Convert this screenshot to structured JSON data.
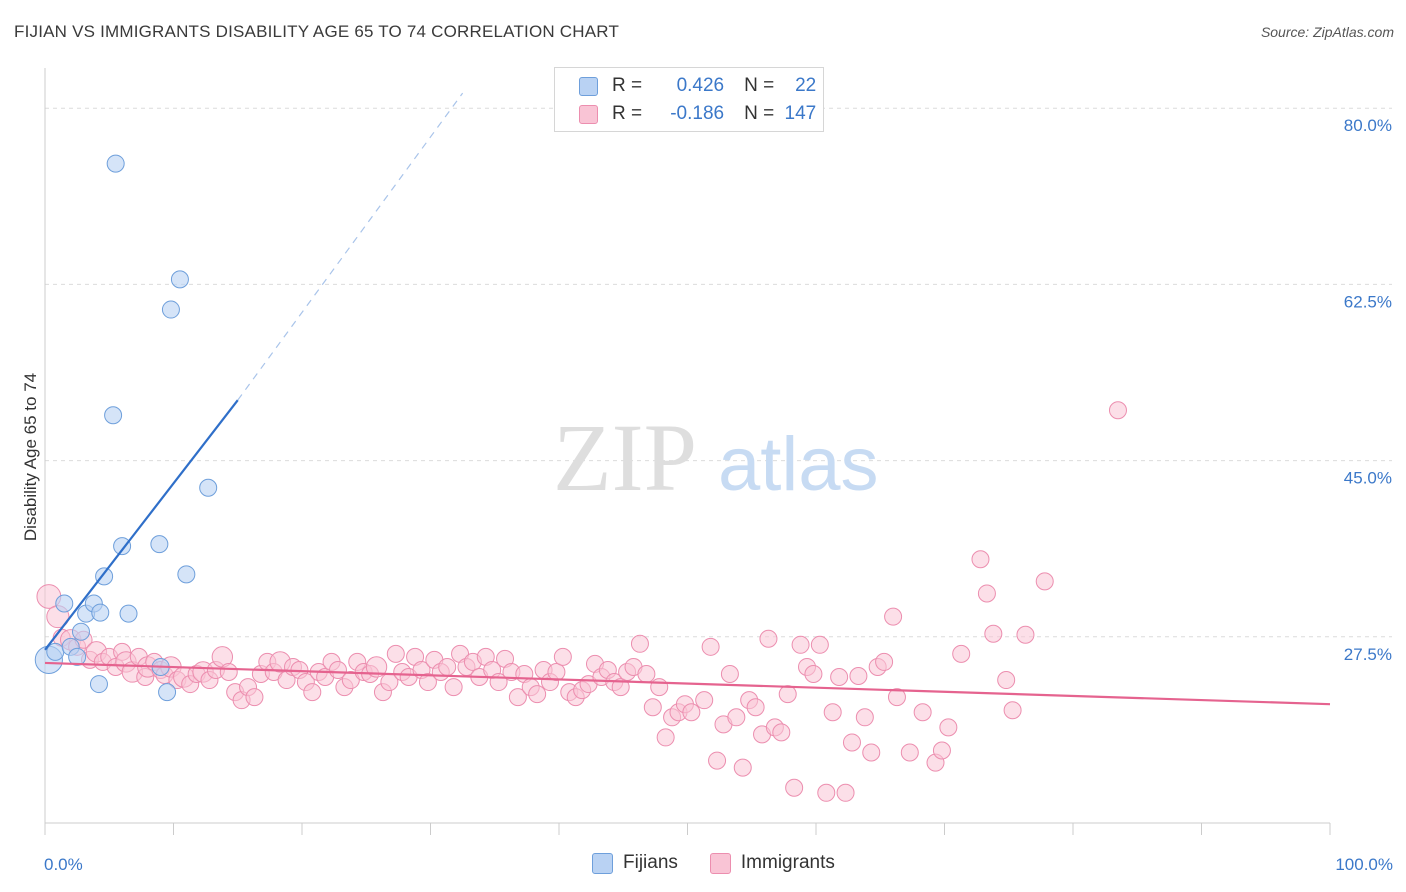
{
  "title": "FIJIAN VS IMMIGRANTS DISABILITY AGE 65 TO 74 CORRELATION CHART",
  "source": "Source: ZipAtlas.com",
  "watermark": {
    "zip": "ZIP",
    "atlas": "atlas"
  },
  "legend": {
    "r_label": "R =",
    "n_label": "N =",
    "fijians": {
      "r": "0.426",
      "n": "22"
    },
    "immigrants": {
      "r": "-0.186",
      "n": "147"
    }
  },
  "colors": {
    "fijians_fill": "#b9d2f3",
    "fijians_stroke": "#6e9fdb",
    "fijians_line": "#2f6fc9",
    "immigrants_fill": "#f9c4d5",
    "immigrants_stroke": "#ec8eaf",
    "immigrants_line": "#e5638f",
    "axis_text": "#3b78c9",
    "grid": "#dcdcdc"
  },
  "chart_data": {
    "type": "scatter",
    "title": "FIJIAN VS IMMIGRANTS DISABILITY AGE 65 TO 74 CORRELATION CHART",
    "xlabel": "",
    "ylabel": "Disability Age 65 to 74",
    "xlim": [
      0,
      100
    ],
    "ylim": [
      9,
      83
    ],
    "x_tick_labels": [
      "0.0%",
      "100.0%"
    ],
    "y_ticks": [
      27.5,
      45.0,
      62.5,
      80.0
    ],
    "y_tick_labels": [
      "27.5%",
      "45.0%",
      "62.5%",
      "80.0%"
    ],
    "legend_bottom": [
      "Fijians",
      "Immigrants"
    ],
    "series": [
      {
        "name": "Fijians",
        "points": [
          [
            0.3,
            25.2,
            1.6
          ],
          [
            0.8,
            26.0,
            1
          ],
          [
            1.5,
            30.8,
            1
          ],
          [
            2.0,
            26.5,
            1
          ],
          [
            2.5,
            25.5,
            1
          ],
          [
            2.8,
            28.0,
            1
          ],
          [
            3.2,
            29.8,
            1
          ],
          [
            3.8,
            30.8,
            1
          ],
          [
            4.2,
            22.8,
            1
          ],
          [
            4.3,
            29.9,
            1
          ],
          [
            4.6,
            33.5,
            1
          ],
          [
            5.3,
            49.5,
            1
          ],
          [
            5.5,
            74.5,
            1
          ],
          [
            6.0,
            36.5,
            1
          ],
          [
            6.5,
            29.8,
            1
          ],
          [
            8.9,
            36.7,
            1
          ],
          [
            9.0,
            24.5,
            1
          ],
          [
            9.5,
            22.0,
            1
          ],
          [
            9.8,
            60.0,
            1
          ],
          [
            10.5,
            63.0,
            1
          ],
          [
            11.0,
            33.7,
            1
          ],
          [
            12.7,
            42.3,
            1
          ]
        ],
        "trend": {
          "x0": 0.0,
          "y0": 26.2,
          "x1": 15.0,
          "y1": 51.0,
          "dash_x1": 32.5,
          "dash_y1": 81.5
        }
      },
      {
        "name": "Immigrants",
        "points": [
          [
            0.3,
            31.5,
            1.4
          ],
          [
            1.0,
            29.5,
            1.3
          ],
          [
            1.3,
            27.4,
            1
          ],
          [
            2.0,
            27.2,
            1.2
          ],
          [
            2.5,
            26.5,
            1
          ],
          [
            3.0,
            27.2,
            1
          ],
          [
            3.5,
            25.2,
            1
          ],
          [
            4.0,
            26.0,
            1.2
          ],
          [
            4.5,
            25.0,
            1
          ],
          [
            5.0,
            25.5,
            1
          ],
          [
            5.5,
            24.5,
            1
          ],
          [
            6.0,
            26.0,
            1
          ],
          [
            6.3,
            25.0,
            1.2
          ],
          [
            6.8,
            24.0,
            1.2
          ],
          [
            7.3,
            25.5,
            1
          ],
          [
            7.8,
            23.5,
            1
          ],
          [
            8.0,
            24.5,
            1.2
          ],
          [
            8.5,
            25.0,
            1
          ],
          [
            9.0,
            24.2,
            1
          ],
          [
            9.3,
            23.7,
            1
          ],
          [
            9.8,
            24.5,
            1.2
          ],
          [
            10.3,
            23.2,
            1
          ],
          [
            10.8,
            23.5,
            1.2
          ],
          [
            11.3,
            22.8,
            1
          ],
          [
            11.8,
            23.8,
            1
          ],
          [
            12.3,
            24.0,
            1.2
          ],
          [
            12.8,
            23.2,
            1
          ],
          [
            13.3,
            24.2,
            1
          ],
          [
            13.8,
            25.5,
            1.2
          ],
          [
            14.3,
            24.0,
            1
          ],
          [
            14.8,
            22.0,
            1
          ],
          [
            15.3,
            21.2,
            1
          ],
          [
            15.8,
            22.5,
            1
          ],
          [
            16.3,
            21.5,
            1
          ],
          [
            16.8,
            23.8,
            1
          ],
          [
            17.3,
            25.0,
            1
          ],
          [
            17.8,
            24.0,
            1
          ],
          [
            18.3,
            25.0,
            1.2
          ],
          [
            18.8,
            23.2,
            1
          ],
          [
            19.3,
            24.5,
            1
          ],
          [
            19.8,
            24.2,
            1
          ],
          [
            20.3,
            23.0,
            1
          ],
          [
            20.8,
            22.0,
            1
          ],
          [
            21.3,
            24.0,
            1
          ],
          [
            21.8,
            23.5,
            1
          ],
          [
            22.3,
            25.0,
            1
          ],
          [
            22.8,
            24.2,
            1
          ],
          [
            23.3,
            22.5,
            1
          ],
          [
            23.8,
            23.2,
            1
          ],
          [
            24.3,
            25.0,
            1
          ],
          [
            24.8,
            24.0,
            1
          ],
          [
            25.3,
            23.8,
            1
          ],
          [
            25.8,
            24.5,
            1.2
          ],
          [
            26.3,
            22.0,
            1
          ],
          [
            26.8,
            23.0,
            1
          ],
          [
            27.3,
            25.8,
            1
          ],
          [
            27.8,
            24.0,
            1
          ],
          [
            28.3,
            23.5,
            1
          ],
          [
            28.8,
            25.5,
            1
          ],
          [
            29.3,
            24.2,
            1
          ],
          [
            29.8,
            23.0,
            1
          ],
          [
            30.3,
            25.2,
            1
          ],
          [
            30.8,
            24.0,
            1
          ],
          [
            31.3,
            24.5,
            1
          ],
          [
            31.8,
            22.5,
            1
          ],
          [
            32.3,
            25.8,
            1
          ],
          [
            32.8,
            24.5,
            1
          ],
          [
            33.3,
            25.0,
            1
          ],
          [
            33.8,
            23.5,
            1
          ],
          [
            34.3,
            25.5,
            1
          ],
          [
            34.8,
            24.2,
            1
          ],
          [
            35.3,
            23.0,
            1
          ],
          [
            35.8,
            25.3,
            1
          ],
          [
            36.3,
            24.0,
            1
          ],
          [
            36.8,
            21.5,
            1
          ],
          [
            37.3,
            23.8,
            1
          ],
          [
            37.8,
            22.5,
            1
          ],
          [
            38.3,
            21.8,
            1
          ],
          [
            38.8,
            24.2,
            1
          ],
          [
            39.3,
            23.0,
            1
          ],
          [
            39.8,
            24.0,
            1
          ],
          [
            40.3,
            25.5,
            1
          ],
          [
            40.8,
            22.0,
            1
          ],
          [
            41.3,
            21.5,
            1
          ],
          [
            41.8,
            22.2,
            1
          ],
          [
            42.3,
            22.8,
            1
          ],
          [
            42.8,
            24.8,
            1
          ],
          [
            43.3,
            23.5,
            1
          ],
          [
            43.8,
            24.2,
            1
          ],
          [
            44.3,
            23.0,
            1
          ],
          [
            44.8,
            22.5,
            1
          ],
          [
            45.3,
            24.0,
            1
          ],
          [
            45.8,
            24.5,
            1
          ],
          [
            46.3,
            26.8,
            1
          ],
          [
            46.8,
            23.8,
            1
          ],
          [
            47.3,
            20.5,
            1
          ],
          [
            47.8,
            22.5,
            1
          ],
          [
            48.3,
            17.5,
            1
          ],
          [
            48.8,
            19.5,
            1
          ],
          [
            49.3,
            20.0,
            1
          ],
          [
            49.8,
            20.8,
            1
          ],
          [
            50.3,
            20.0,
            1
          ],
          [
            51.3,
            21.2,
            1
          ],
          [
            51.8,
            26.5,
            1
          ],
          [
            52.3,
            15.2,
            1
          ],
          [
            52.8,
            18.8,
            1
          ],
          [
            53.3,
            23.8,
            1
          ],
          [
            53.8,
            19.5,
            1
          ],
          [
            54.3,
            14.5,
            1
          ],
          [
            54.8,
            21.2,
            1
          ],
          [
            55.3,
            20.5,
            1
          ],
          [
            55.8,
            17.8,
            1
          ],
          [
            56.3,
            27.3,
            1
          ],
          [
            56.8,
            18.5,
            1
          ],
          [
            57.3,
            18.0,
            1
          ],
          [
            57.8,
            21.8,
            1
          ],
          [
            58.3,
            12.5,
            1
          ],
          [
            58.8,
            26.7,
            1
          ],
          [
            59.3,
            24.5,
            1
          ],
          [
            59.8,
            23.8,
            1
          ],
          [
            60.3,
            26.7,
            1
          ],
          [
            60.8,
            12.0,
            1
          ],
          [
            61.3,
            20.0,
            1
          ],
          [
            61.8,
            23.5,
            1
          ],
          [
            62.3,
            12.0,
            1
          ],
          [
            62.8,
            17.0,
            1
          ],
          [
            63.3,
            23.6,
            1
          ],
          [
            63.8,
            19.5,
            1
          ],
          [
            64.3,
            16.0,
            1
          ],
          [
            64.8,
            24.5,
            1
          ],
          [
            65.3,
            25.0,
            1
          ],
          [
            66.3,
            21.5,
            1
          ],
          [
            67.3,
            16.0,
            1
          ],
          [
            68.3,
            20.0,
            1
          ],
          [
            69.3,
            15.0,
            1
          ],
          [
            69.8,
            16.2,
            1
          ],
          [
            70.3,
            18.5,
            1
          ],
          [
            71.3,
            25.8,
            1
          ],
          [
            72.8,
            35.2,
            1
          ],
          [
            73.3,
            31.8,
            1
          ],
          [
            73.8,
            27.8,
            1
          ],
          [
            74.8,
            23.2,
            1
          ],
          [
            75.3,
            20.2,
            1
          ],
          [
            76.3,
            27.7,
            1
          ],
          [
            77.8,
            33.0,
            1
          ],
          [
            83.5,
            50.0,
            1
          ],
          [
            66.0,
            29.5,
            1
          ]
        ],
        "trend": {
          "x0": 0.0,
          "y0": 24.9,
          "x1": 100.0,
          "y1": 20.8
        }
      }
    ]
  }
}
